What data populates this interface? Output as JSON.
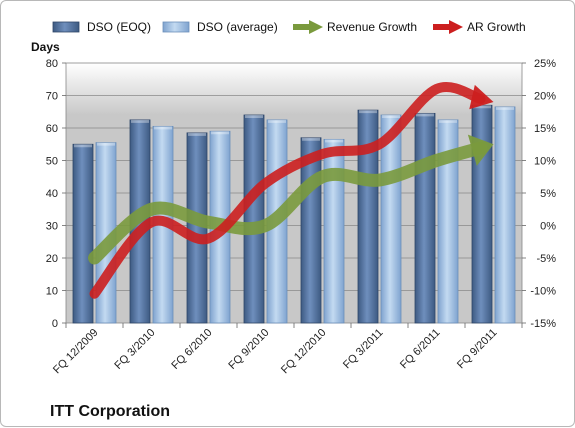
{
  "chart_data": {
    "type": "bar",
    "title": "ITT Corporation",
    "ylabel_left": "Days",
    "ylim_left": [
      0,
      80
    ],
    "yticks_left": [
      "0",
      "10",
      "20",
      "30",
      "40",
      "50",
      "60",
      "70",
      "80"
    ],
    "ylim_right": [
      -15,
      25
    ],
    "yticks_right": [
      "-15%",
      "-10%",
      "-5%",
      "0%",
      "5%",
      "10%",
      "15%",
      "20%",
      "25%"
    ],
    "categories": [
      "FQ 12/2009",
      "FQ 3/2010",
      "FQ 6/2010",
      "FQ 9/2010",
      "FQ 12/2010",
      "FQ 3/2011",
      "FQ 6/2011",
      "FQ 9/2011"
    ],
    "series": [
      {
        "name": "DSO (EOQ)",
        "type": "bar",
        "axis": "left",
        "color": "#4f6c97",
        "values": [
          55,
          62.5,
          58.5,
          64,
          57,
          65.5,
          64.5,
          67
        ]
      },
      {
        "name": "DSO (average)",
        "type": "bar",
        "axis": "left",
        "color": "#9dbfe2",
        "values": [
          55.5,
          60.5,
          59,
          62.5,
          56.5,
          64,
          62.5,
          66.5
        ]
      },
      {
        "name": "Revenue Growth",
        "type": "line",
        "axis": "right",
        "color": "#7a9a3d",
        "values": [
          -5,
          2.5,
          0.5,
          0,
          7.5,
          7,
          10,
          12.5
        ]
      },
      {
        "name": "AR Growth",
        "type": "line",
        "axis": "right",
        "color": "#cc1f1f",
        "values": [
          -10.5,
          0.5,
          -2,
          6.5,
          11,
          12.5,
          21,
          19
        ]
      }
    ],
    "grid": true,
    "legend_position": "top"
  }
}
